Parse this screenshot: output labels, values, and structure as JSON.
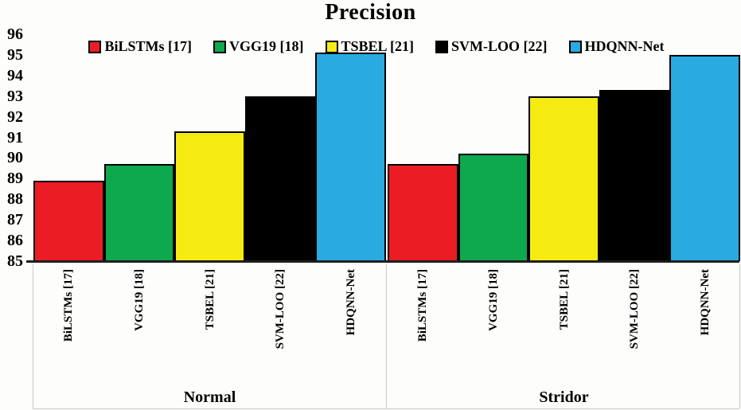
{
  "chart_data": {
    "type": "bar",
    "title": "Precision",
    "groups": [
      "Normal",
      "Stridor"
    ],
    "categories": [
      "BiLSTMs [17]",
      "VGG19 [18]",
      "TSBEL [21]",
      "SVM-LOO [22]",
      "HDQNN-Net"
    ],
    "series": [
      {
        "name": "BiLSTMs [17]",
        "color": "#EC1C24",
        "values": [
          88.9,
          89.7
        ]
      },
      {
        "name": "VGG19 [18]",
        "color": "#0EA84E",
        "values": [
          89.7,
          90.2
        ]
      },
      {
        "name": "TSBEL [21]",
        "color": "#F5EB12",
        "values": [
          91.3,
          93.0
        ]
      },
      {
        "name": "SVM-LOO [22]",
        "color": "#000000",
        "values": [
          93.0,
          93.3
        ]
      },
      {
        "name": "HDQNN-Net",
        "color": "#29ABE2",
        "values": [
          95.1,
          95.0
        ]
      }
    ],
    "ylim": [
      85,
      96
    ],
    "ytick_step": 1,
    "yticks": [
      85,
      86,
      87,
      88,
      89,
      90,
      91,
      92,
      93,
      94,
      95,
      96
    ],
    "grid": false,
    "legend_position": "top",
    "bar_border_color": "#000000",
    "axis_line_color": "#1f1f1f",
    "divider_line_color": "#c9c9c9"
  }
}
